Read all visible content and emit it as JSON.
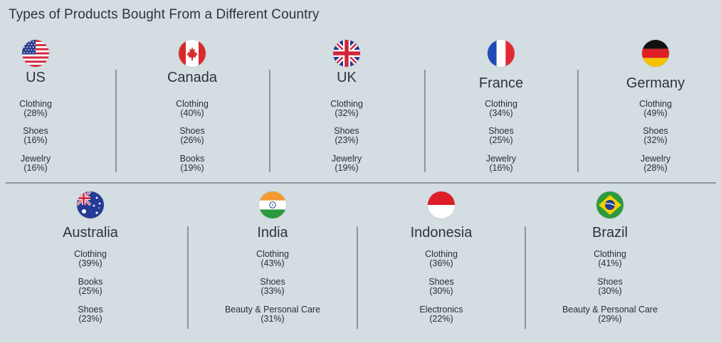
{
  "title": "Types of Products Bought From a Different Country",
  "chart_data": {
    "type": "table",
    "title": "Types of Products Bought From a Different Country",
    "countries": [
      {
        "name": "US",
        "flag": "us-flag-icon",
        "products": [
          {
            "category": "Clothing",
            "percent": 28,
            "label": "(28%)"
          },
          {
            "category": "Shoes",
            "percent": 16,
            "label": "(16%)"
          },
          {
            "category": "Jewelry",
            "percent": 16,
            "label": "(16%)"
          }
        ]
      },
      {
        "name": "Canada",
        "flag": "canada-flag-icon",
        "products": [
          {
            "category": "Clothing",
            "percent": 40,
            "label": "(40%)"
          },
          {
            "category": "Shoes",
            "percent": 26,
            "label": "(26%)"
          },
          {
            "category": "Books",
            "percent": 19,
            "label": "(19%)"
          }
        ]
      },
      {
        "name": "UK",
        "flag": "uk-flag-icon",
        "products": [
          {
            "category": "Clothing",
            "percent": 32,
            "label": "(32%)"
          },
          {
            "category": "Shoes",
            "percent": 23,
            "label": "(23%)"
          },
          {
            "category": "Jewelry",
            "percent": 19,
            "label": "(19%)"
          }
        ]
      },
      {
        "name": "France",
        "flag": "france-flag-icon",
        "products": [
          {
            "category": "Clothing",
            "percent": 34,
            "label": "(34%)"
          },
          {
            "category": "Shoes",
            "percent": 25,
            "label": "(25%)"
          },
          {
            "category": "Jewelry",
            "percent": 16,
            "label": "(16%)"
          }
        ]
      },
      {
        "name": "Germany",
        "flag": "germany-flag-icon",
        "products": [
          {
            "category": "Clothing",
            "percent": 49,
            "label": "(49%)"
          },
          {
            "category": "Shoes",
            "percent": 32,
            "label": "(32%)"
          },
          {
            "category": "Jewelry",
            "percent": 28,
            "label": "(28%)"
          }
        ]
      },
      {
        "name": "Australia",
        "flag": "australia-flag-icon",
        "products": [
          {
            "category": "Clothing",
            "percent": 39,
            "label": "(39%)"
          },
          {
            "category": "Books",
            "percent": 25,
            "label": "(25%)"
          },
          {
            "category": "Shoes",
            "percent": 23,
            "label": "(23%)"
          }
        ]
      },
      {
        "name": "India",
        "flag": "india-flag-icon",
        "products": [
          {
            "category": "Clothing",
            "percent": 43,
            "label": "(43%)"
          },
          {
            "category": "Shoes",
            "percent": 33,
            "label": "(33%)"
          },
          {
            "category": "Beauty & Personal Care",
            "percent": 31,
            "label": "(31%)"
          }
        ]
      },
      {
        "name": "Indonesia",
        "flag": "indonesia-flag-icon",
        "products": [
          {
            "category": "Clothing",
            "percent": 36,
            "label": "(36%)"
          },
          {
            "category": "Shoes",
            "percent": 30,
            "label": "(30%)"
          },
          {
            "category": "Electronics",
            "percent": 22,
            "label": "(22%)"
          }
        ]
      },
      {
        "name": "Brazil",
        "flag": "brazil-flag-icon",
        "products": [
          {
            "category": "Clothing",
            "percent": 41,
            "label": "(41%)"
          },
          {
            "category": "Shoes",
            "percent": 30,
            "label": "(30%)"
          },
          {
            "category": "Beauty & Personal Care",
            "percent": 29,
            "label": "(29%)"
          }
        ]
      }
    ]
  },
  "colors": {
    "background": "#d3dde2",
    "divider": "#8b959c",
    "text": "#2b2f33"
  }
}
